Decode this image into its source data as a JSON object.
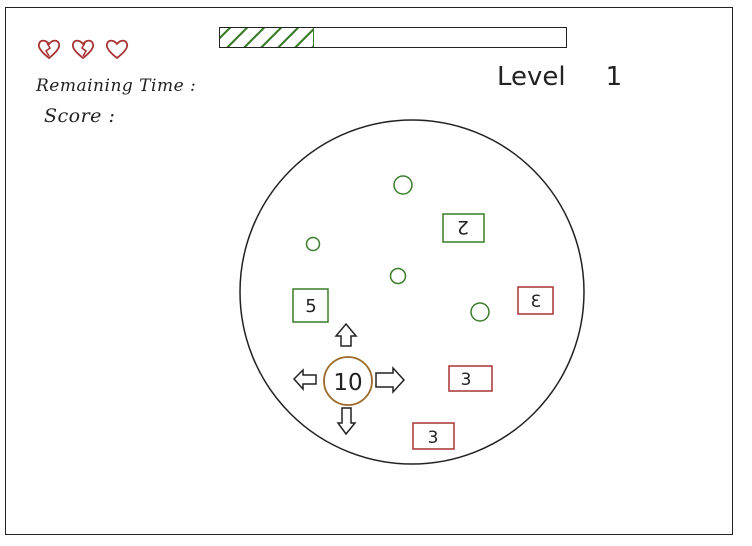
{
  "hud": {
    "lives": [
      {
        "icon": "heart-cracked-icon",
        "state": "lost"
      },
      {
        "icon": "heart-cracked-icon",
        "state": "lost"
      },
      {
        "icon": "heart-icon",
        "state": "full"
      }
    ],
    "remaining_time_label": "Remaining Time :",
    "score_label": "Score :",
    "time_progress": 0.27,
    "level_label": "Level",
    "level_value": "1"
  },
  "arena": {
    "player": {
      "value": "10",
      "color": "#9a6a2a"
    },
    "green_circles": [
      {
        "id": "food-1"
      },
      {
        "id": "food-2"
      },
      {
        "id": "food-3"
      },
      {
        "id": "food-4"
      }
    ],
    "friendly_boxes": [
      {
        "label": "2",
        "color": "#3a7d2a"
      },
      {
        "label": "5",
        "color": "#3a7d2a"
      }
    ],
    "enemy_boxes": [
      {
        "label": "3",
        "color": "#a83232"
      },
      {
        "label": "3",
        "color": "#a83232"
      },
      {
        "label": "3",
        "color": "#a83232"
      }
    ]
  },
  "colors": {
    "green": "#3a7d2a",
    "red": "#a83232",
    "brown": "#9a6a2a",
    "ink": "#222222"
  }
}
